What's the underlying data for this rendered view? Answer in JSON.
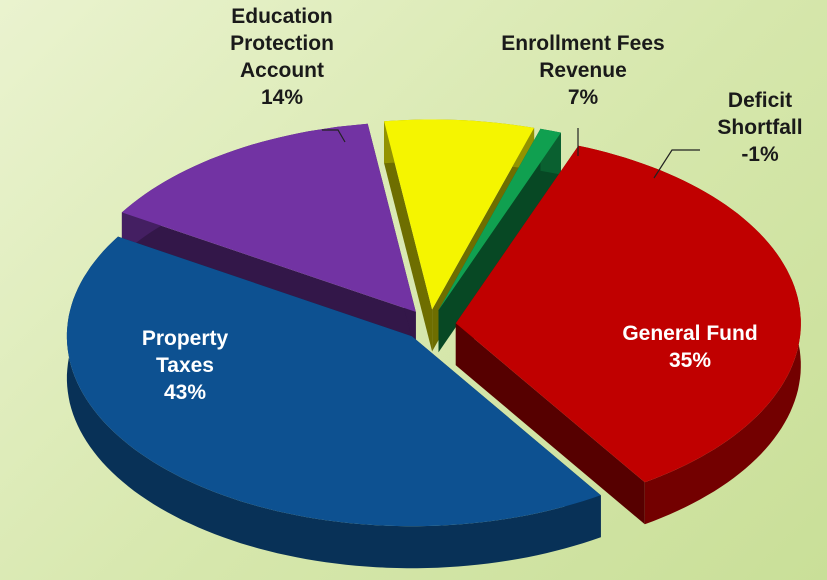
{
  "chart_data": {
    "type": "pie3d",
    "categories": [
      "Enrollment Fees Revenue",
      "Deficit Shortfall",
      "General Fund",
      "Property Taxes",
      "Education Protection Account"
    ],
    "values": [
      7,
      -1,
      35,
      43,
      14
    ],
    "value_labels": [
      "7%",
      "-1%",
      "35%",
      "43%",
      "14%"
    ],
    "colors": [
      "#f5f500",
      "#10a050",
      "#c00000",
      "#0d5191",
      "#7233a3"
    ]
  }
}
